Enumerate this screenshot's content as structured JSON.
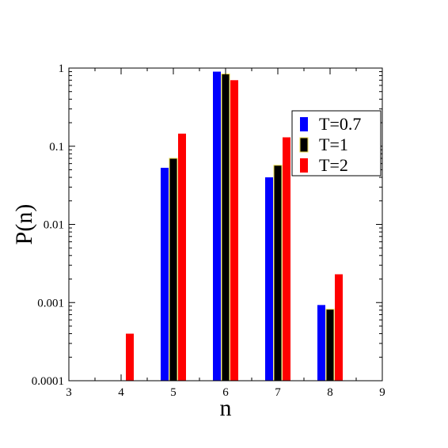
{
  "chart_data": {
    "type": "bar",
    "xlabel": "n",
    "ylabel": "P(n)",
    "yscale": "log",
    "xlim": [
      3,
      9
    ],
    "ylim": [
      0.0001,
      1
    ],
    "xticks": [
      "3",
      "4",
      "5",
      "6",
      "7",
      "8",
      "9"
    ],
    "yticks": [
      "0.0001",
      "0.001",
      "0.01",
      "0.1",
      "1"
    ],
    "categories": [
      4,
      5,
      6,
      7,
      8
    ],
    "legend_position": "top-right",
    "grid": false,
    "series": [
      {
        "name": "T=0.7",
        "color": "#0000ff",
        "values": [
          null,
          0.053,
          0.9,
          0.04,
          0.00093
        ]
      },
      {
        "name": "T=1",
        "color": "#000000",
        "values": [
          null,
          0.07,
          0.84,
          0.057,
          0.00082
        ]
      },
      {
        "name": "T=2",
        "color": "#ff0000",
        "values": [
          0.0004,
          0.145,
          0.7,
          0.13,
          0.0023
        ]
      }
    ]
  }
}
